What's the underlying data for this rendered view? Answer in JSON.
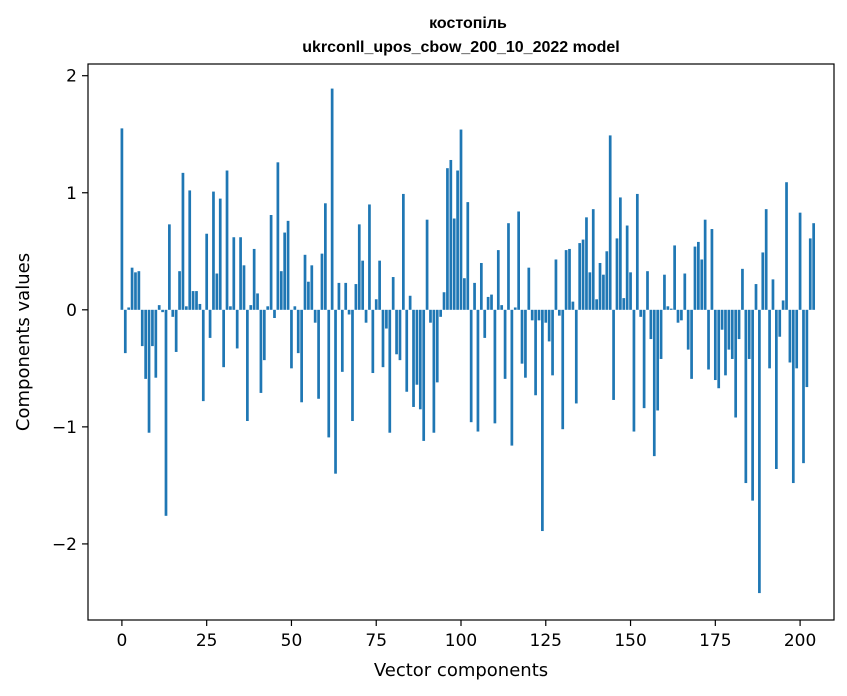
{
  "chart_data": {
    "type": "bar",
    "title_line1": "костопіль",
    "title_line2": "ukrconll_upos_cbow_200_10_2022 model",
    "xlabel": "Vector components",
    "ylabel": "Components values",
    "xlim": [
      -10,
      210
    ],
    "ylim": [
      -2.65,
      2.1
    ],
    "xticks": [
      0,
      25,
      50,
      75,
      100,
      125,
      150,
      175,
      200
    ],
    "xtick_labels": [
      "0",
      "25",
      "50",
      "75",
      "100",
      "125",
      "150",
      "175",
      "200"
    ],
    "yticks": [
      -2,
      -1,
      0,
      1,
      2
    ],
    "ytick_labels": [
      "−2",
      "−1",
      "0",
      "1",
      "2"
    ],
    "grid": false,
    "bar_color": "#1f77b4",
    "values": [
      1.55,
      -0.37,
      0.02,
      0.36,
      0.32,
      0.33,
      -0.31,
      -0.59,
      -1.05,
      -0.31,
      -0.58,
      0.04,
      -0.02,
      -1.76,
      0.73,
      -0.06,
      -0.36,
      0.33,
      1.17,
      0.03,
      1.02,
      0.16,
      0.16,
      0.05,
      -0.78,
      0.65,
      -0.24,
      1.01,
      0.31,
      0.95,
      -0.49,
      1.19,
      0.03,
      0.62,
      -0.33,
      0.62,
      0.38,
      -0.95,
      0.04,
      0.52,
      0.14,
      -0.71,
      -0.43,
      0.03,
      0.81,
      -0.07,
      1.26,
      0.33,
      0.66,
      0.76,
      -0.5,
      0.03,
      -0.37,
      -0.79,
      0.47,
      0.24,
      0.38,
      -0.11,
      -0.76,
      0.48,
      0.91,
      -1.09,
      1.89,
      -1.4,
      0.23,
      -0.53,
      0.23,
      -0.04,
      -0.95,
      0.22,
      0.73,
      0.42,
      -0.11,
      0.9,
      -0.54,
      0.09,
      0.42,
      -0.49,
      -0.16,
      -1.05,
      0.28,
      -0.38,
      -0.43,
      0.99,
      -0.7,
      0.12,
      -0.83,
      -0.64,
      -0.85,
      -1.12,
      0.77,
      -0.11,
      -1.05,
      -0.62,
      -0.06,
      0.15,
      1.21,
      1.28,
      0.78,
      1.19,
      1.54,
      0.27,
      0.92,
      -0.96,
      0.23,
      -1.04,
      0.4,
      -0.24,
      0.11,
      0.13,
      -0.97,
      0.51,
      0.04,
      -0.59,
      0.74,
      -1.16,
      0.02,
      0.84,
      -0.46,
      -0.58,
      0.36,
      -0.09,
      -0.73,
      -0.09,
      -1.89,
      -0.11,
      -0.27,
      -0.56,
      0.43,
      -0.05,
      -1.02,
      0.51,
      0.52,
      0.07,
      -0.8,
      0.57,
      0.6,
      0.79,
      0.32,
      0.86,
      0.09,
      0.4,
      0.3,
      0.5,
      1.49,
      -0.77,
      0.61,
      0.96,
      0.1,
      0.72,
      0.32,
      -1.04,
      0.99,
      -0.06,
      -0.84,
      0.33,
      -0.25,
      -1.25,
      -0.86,
      -0.42,
      0.3,
      0.03,
      0.01,
      0.55,
      -0.11,
      -0.09,
      0.31,
      -0.34,
      -0.59,
      0.54,
      0.58,
      0.43,
      0.77,
      -0.51,
      0.69,
      -0.6,
      -0.67,
      -0.17,
      -0.56,
      -0.34,
      -0.42,
      -0.92,
      -0.25,
      0.35,
      -1.48,
      -0.42,
      -1.63,
      0.22,
      -2.42,
      0.49,
      0.86,
      -0.5,
      0.26,
      -1.36,
      -0.23,
      0.08,
      1.09,
      -0.45,
      -1.48,
      -0.5,
      0.83,
      -1.31,
      -0.66,
      0.61,
      0.74
    ]
  }
}
